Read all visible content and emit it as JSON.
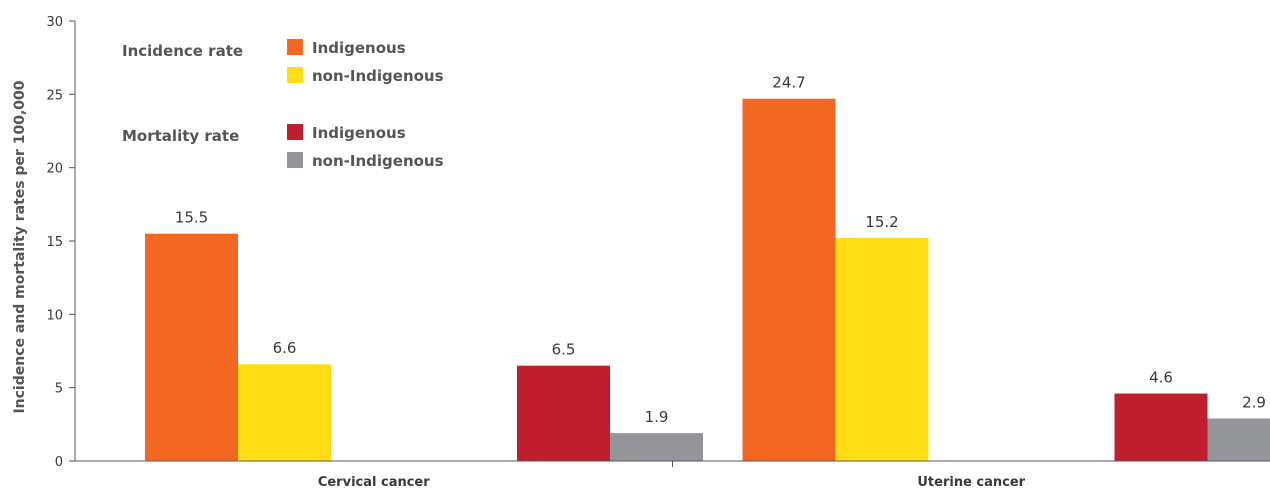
{
  "chart_data": {
    "type": "bar",
    "categories": [
      "Cervical cancer",
      "Uterine cancer"
    ],
    "ylabel": "Incidence and mortality rates per 100,000",
    "ylim": [
      0,
      30
    ],
    "yticks": [
      "0",
      "5",
      "10",
      "15",
      "20",
      "25",
      "30"
    ],
    "series": [
      {
        "name": "Indigenous",
        "group": "Incidence rate",
        "color": "#f26722",
        "values": [
          15.5,
          24.7
        ]
      },
      {
        "name": "non-Indigenous",
        "group": "Incidence rate",
        "color": "#ffdd15",
        "values": [
          6.6,
          15.2
        ]
      },
      {
        "name": "Indigenous",
        "group": "Mortality rate",
        "color": "#be1e2d",
        "values": [
          6.5,
          4.6
        ]
      },
      {
        "name": "non-Indigenous",
        "group": "Mortality rate",
        "color": "#939598",
        "values": [
          1.9,
          2.9
        ]
      }
    ],
    "value_labels": [
      [
        "15.5",
        "24.7"
      ],
      [
        "6.6",
        "15.2"
      ],
      [
        "6.5",
        "4.6"
      ],
      [
        "1.9",
        "2.9"
      ]
    ],
    "legend": {
      "placement": "top-left",
      "groups": [
        {
          "title": "Incidence rate",
          "entries": [
            "Indigenous",
            "non-Indigenous"
          ]
        },
        {
          "title": "Mortality rate",
          "entries": [
            "Indigenous",
            "non-Indigenous"
          ]
        }
      ]
    },
    "grid": false
  }
}
